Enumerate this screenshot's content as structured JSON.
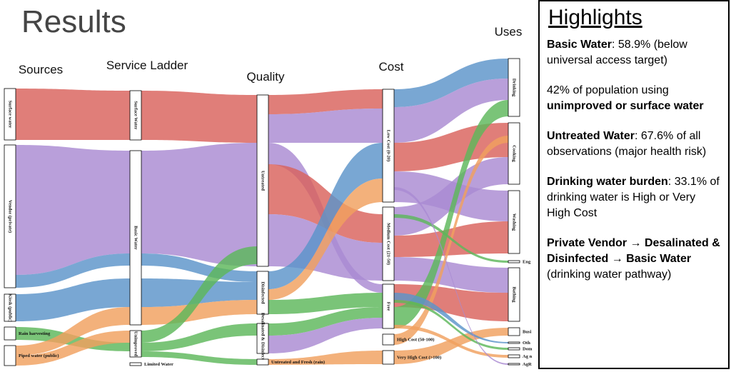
{
  "title": "Results",
  "diagram": {
    "columns": [
      {
        "title": "Sources",
        "nodes": [
          "Surface water",
          "Vendor (private)",
          "Kiosk (public)",
          "Rain harvesting",
          "Piped water (public)"
        ]
      },
      {
        "title": "Service Ladder",
        "nodes": [
          "Surface Water",
          "Basic Water",
          "Unimproved",
          "Limited Water"
        ]
      },
      {
        "title": "Quality",
        "nodes": [
          "Untreated",
          "Disinfected",
          "Desalinated & Disinfected",
          "Untreated and Fresh (rain)"
        ]
      },
      {
        "title": "Cost",
        "nodes": [
          "Low Cost (0-20)",
          "Medium Cost (21-50)",
          "Free",
          "High Cost (50-100)",
          "Very High Cost (>100)"
        ]
      },
      {
        "title": "Uses",
        "nodes": [
          "Drinking",
          "Cooking",
          "Washing",
          "Eng",
          "Bathing",
          "Busi",
          "Oth",
          "Dom",
          "Ag n",
          "AgR"
        ]
      }
    ]
  },
  "panel": {
    "heading": "Highlights",
    "paragraphs": [
      [
        {
          "text": "Basic Water",
          "bold": true
        },
        {
          "text": ": 58.9% (below universal access target)",
          "bold": false
        }
      ],
      [
        {
          "text": "42% of population using ",
          "bold": false
        },
        {
          "text": "unimproved or surface water",
          "bold": true
        }
      ],
      [
        {
          "text": "Untreated Water",
          "bold": true
        },
        {
          "text": ": 67.6% of all observations (major health risk)",
          "bold": false
        }
      ],
      [
        {
          "text": "Drinking water burden",
          "bold": true
        },
        {
          "text": ": 33.1% of drinking water is High or Very High Cost",
          "bold": false
        }
      ],
      [
        {
          "text": "Private Vendor → Desalinated & Disinfected → Basic Water",
          "bold": true
        },
        {
          "text": " (drinking water pathway)",
          "bold": false
        }
      ]
    ]
  }
}
